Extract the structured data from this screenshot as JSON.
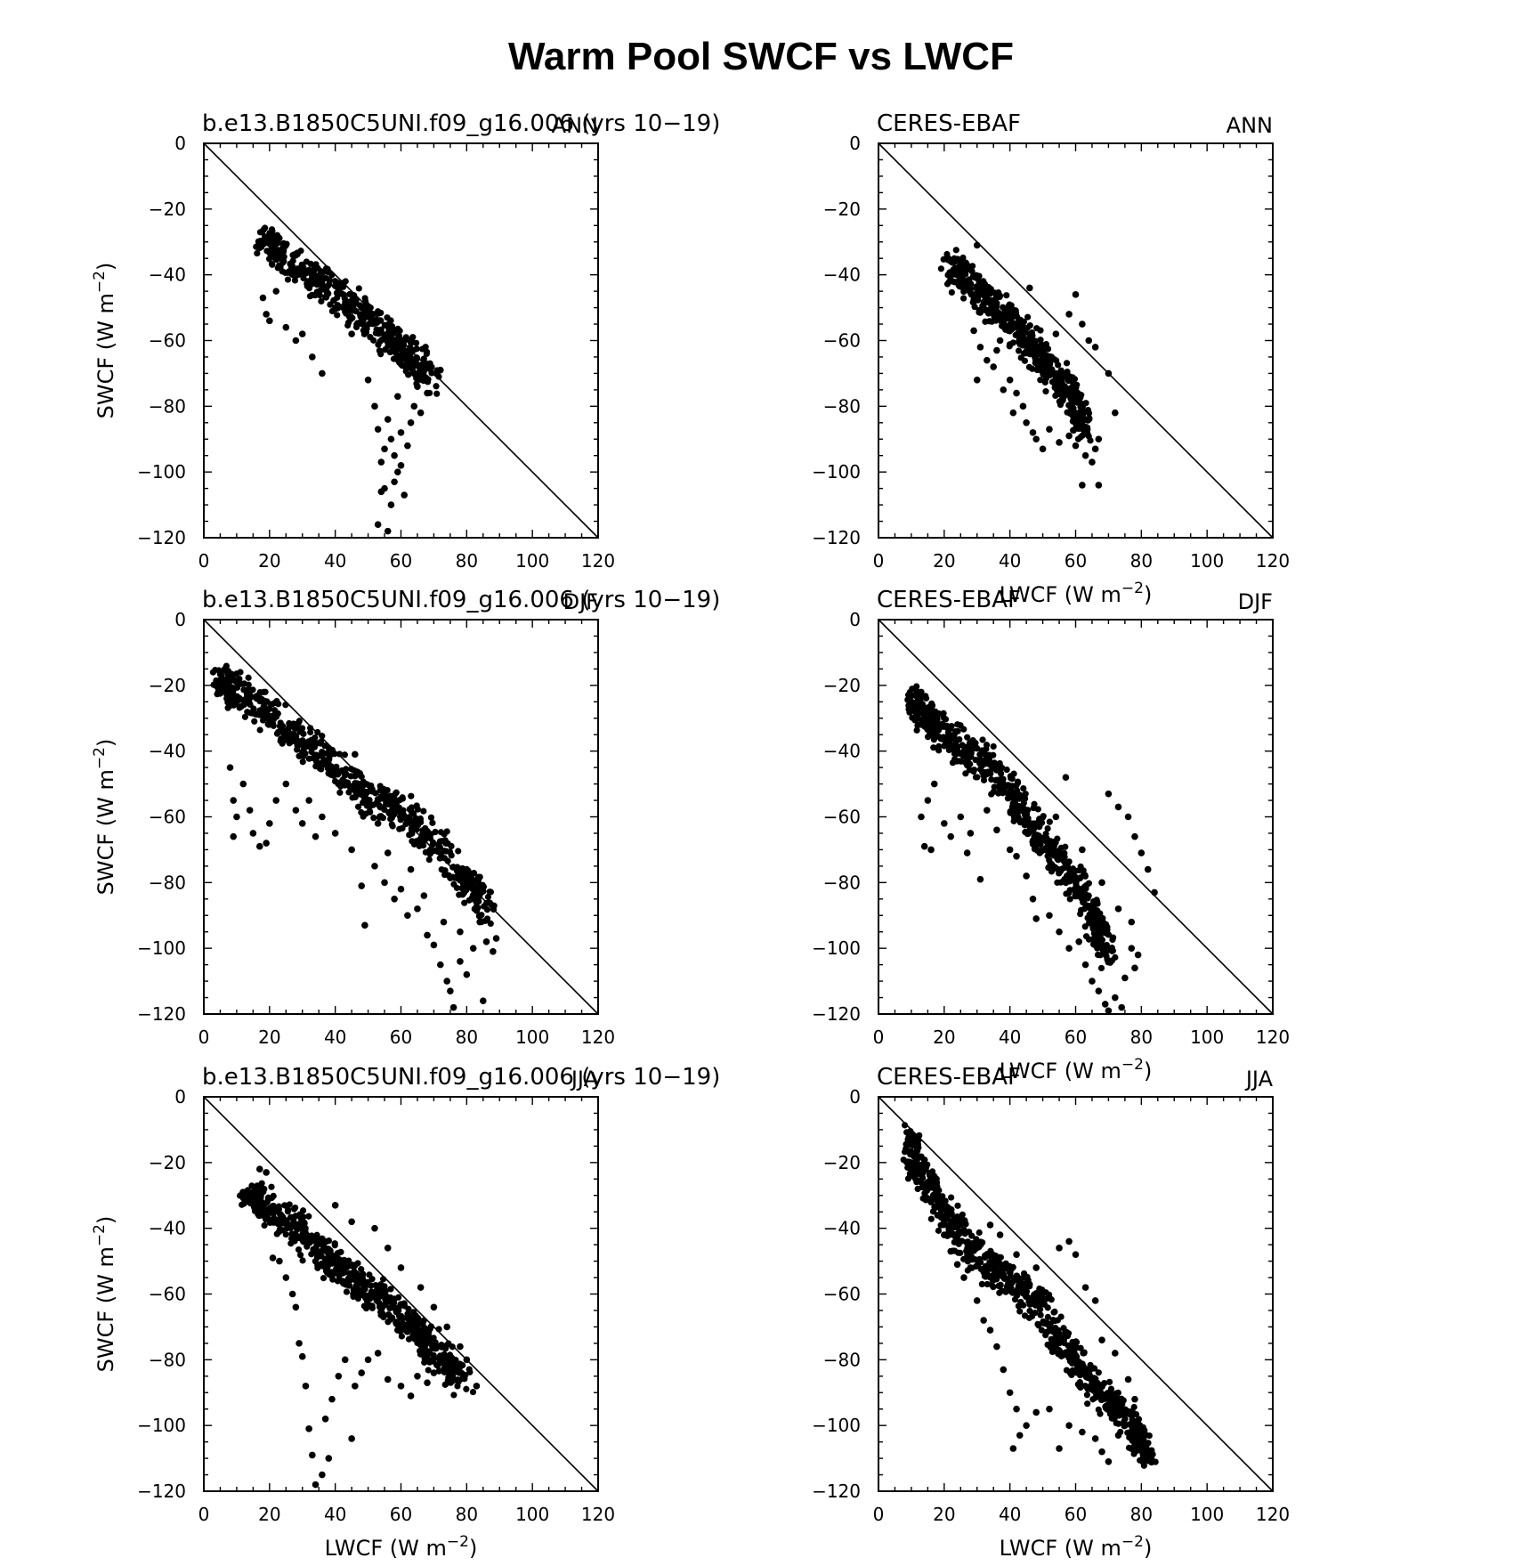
{
  "title": "Warm Pool SWCF vs LWCF",
  "chart_data": [
    {
      "type": "scatter",
      "left_title": "b.e13.B1850C5UNI.f09_g16.006 (yrs 10-19)",
      "right_title": "ANN",
      "xlabel": "",
      "ylabel": "SWCF (W m^-2)",
      "xlim": [
        0,
        120
      ],
      "ylim": [
        -120,
        0
      ],
      "xticks": [
        "0",
        "20",
        "40",
        "60",
        "80",
        "100",
        "120"
      ],
      "yticks": [
        "0",
        "-20",
        "-40",
        "-60",
        "-80",
        "-100",
        "-120"
      ],
      "reference_line": "y = -x",
      "cluster_core": [
        [
          17,
          -27
        ],
        [
          25,
          -33
        ],
        [
          35,
          -40
        ],
        [
          45,
          -48
        ],
        [
          55,
          -56
        ],
        [
          62,
          -62
        ],
        [
          70,
          -70
        ]
      ],
      "points": [
        [
          18,
          -47
        ],
        [
          19,
          -52
        ],
        [
          20,
          -54
        ],
        [
          22,
          -45
        ],
        [
          25,
          -56
        ],
        [
          28,
          -60
        ],
        [
          30,
          -58
        ],
        [
          33,
          -65
        ],
        [
          36,
          -70
        ],
        [
          40,
          -50
        ],
        [
          45,
          -58
        ],
        [
          50,
          -72
        ],
        [
          52,
          -80
        ],
        [
          53,
          -87
        ],
        [
          54,
          -97
        ],
        [
          55,
          -93
        ],
        [
          56,
          -84
        ],
        [
          57,
          -90
        ],
        [
          58,
          -95
        ],
        [
          59,
          -100
        ],
        [
          60,
          -98
        ],
        [
          55,
          -105
        ],
        [
          57,
          -110
        ],
        [
          53,
          -116
        ],
        [
          56,
          -118
        ],
        [
          54,
          -106
        ],
        [
          58,
          -103
        ],
        [
          61,
          -107
        ],
        [
          60,
          -88
        ],
        [
          62,
          -92
        ],
        [
          63,
          -85
        ],
        [
          64,
          -80
        ],
        [
          65,
          -74
        ],
        [
          66,
          -82
        ],
        [
          68,
          -76
        ],
        [
          72,
          -69
        ],
        [
          61,
          -60
        ],
        [
          63,
          -66
        ],
        [
          67,
          -71
        ],
        [
          59,
          -77
        ]
      ]
    },
    {
      "type": "scatter",
      "left_title": "CERES-EBAF",
      "right_title": "ANN",
      "xlabel": "LWCF (W m^-2)",
      "ylabel": "",
      "xlim": [
        0,
        120
      ],
      "ylim": [
        -120,
        0
      ],
      "xticks": [
        "0",
        "20",
        "40",
        "60",
        "80",
        "100",
        "120"
      ],
      "yticks": [
        "0",
        "-20",
        "-40",
        "-60",
        "-80",
        "-100",
        "-120"
      ],
      "reference_line": "y = -x",
      "cluster_core": [
        [
          21,
          -35
        ],
        [
          28,
          -40
        ],
        [
          35,
          -48
        ],
        [
          42,
          -55
        ],
        [
          48,
          -62
        ],
        [
          55,
          -70
        ],
        [
          60,
          -78
        ],
        [
          63,
          -85
        ]
      ],
      "points": [
        [
          30,
          -31
        ],
        [
          29,
          -57
        ],
        [
          31,
          -62
        ],
        [
          30,
          -72
        ],
        [
          33,
          -66
        ],
        [
          35,
          -68
        ],
        [
          37,
          -60
        ],
        [
          40,
          -72
        ],
        [
          42,
          -76
        ],
        [
          44,
          -80
        ],
        [
          45,
          -85
        ],
        [
          47,
          -88
        ],
        [
          48,
          -90
        ],
        [
          50,
          -93
        ],
        [
          52,
          -87
        ],
        [
          55,
          -91
        ],
        [
          58,
          -89
        ],
        [
          60,
          -92
        ],
        [
          63,
          -95
        ],
        [
          65,
          -97
        ],
        [
          66,
          -93
        ],
        [
          67,
          -90
        ],
        [
          62,
          -104
        ],
        [
          67,
          -104
        ],
        [
          60,
          -46
        ],
        [
          58,
          -52
        ],
        [
          62,
          -55
        ],
        [
          64,
          -60
        ],
        [
          66,
          -62
        ],
        [
          70,
          -70
        ],
        [
          72,
          -82
        ],
        [
          54,
          -58
        ],
        [
          46,
          -44
        ],
        [
          50,
          -66
        ],
        [
          56,
          -74
        ],
        [
          38,
          -75
        ],
        [
          41,
          -82
        ],
        [
          36,
          -63
        ]
      ]
    },
    {
      "type": "scatter",
      "left_title": "b.e13.B1850C5UNI.f09_g16.006 (yrs 10-19)",
      "right_title": "DJF",
      "xlabel": "",
      "ylabel": "SWCF (W m^-2)",
      "xlim": [
        0,
        120
      ],
      "ylim": [
        -120,
        0
      ],
      "xticks": [
        "0",
        "20",
        "40",
        "60",
        "80",
        "100",
        "120"
      ],
      "yticks": [
        "0",
        "-20",
        "-40",
        "-60",
        "-80",
        "-100",
        "-120"
      ],
      "reference_line": "y = -x",
      "cluster_core": [
        [
          5,
          -15
        ],
        [
          10,
          -20
        ],
        [
          20,
          -27
        ],
        [
          30,
          -35
        ],
        [
          40,
          -43
        ],
        [
          50,
          -52
        ],
        [
          60,
          -56
        ],
        [
          70,
          -66
        ],
        [
          80,
          -78
        ],
        [
          87,
          -86
        ]
      ],
      "points": [
        [
          8,
          -45
        ],
        [
          9,
          -55
        ],
        [
          10,
          -60
        ],
        [
          9,
          -66
        ],
        [
          12,
          -50
        ],
        [
          14,
          -58
        ],
        [
          15,
          -65
        ],
        [
          17,
          -69
        ],
        [
          19,
          -68
        ],
        [
          20,
          -62
        ],
        [
          22,
          -55
        ],
        [
          25,
          -50
        ],
        [
          28,
          -58
        ],
        [
          30,
          -62
        ],
        [
          32,
          -55
        ],
        [
          34,
          -66
        ],
        [
          36,
          -60
        ],
        [
          40,
          -65
        ],
        [
          45,
          -70
        ],
        [
          48,
          -81
        ],
        [
          49,
          -93
        ],
        [
          52,
          -75
        ],
        [
          55,
          -80
        ],
        [
          58,
          -85
        ],
        [
          60,
          -82
        ],
        [
          62,
          -90
        ],
        [
          65,
          -88
        ],
        [
          68,
          -96
        ],
        [
          70,
          -99
        ],
        [
          72,
          -105
        ],
        [
          74,
          -110
        ],
        [
          75,
          -113
        ],
        [
          76,
          -118
        ],
        [
          78,
          -104
        ],
        [
          80,
          -108
        ],
        [
          82,
          -100
        ],
        [
          85,
          -116
        ],
        [
          86,
          -98
        ],
        [
          88,
          -101
        ],
        [
          89,
          -97
        ],
        [
          46,
          -41
        ],
        [
          53,
          -62
        ],
        [
          56,
          -71
        ],
        [
          63,
          -76
        ],
        [
          67,
          -84
        ],
        [
          73,
          -92
        ],
        [
          78,
          -95
        ],
        [
          84,
          -92
        ]
      ]
    },
    {
      "type": "scatter",
      "left_title": "CERES-EBAF",
      "right_title": "DJF",
      "xlabel": "LWCF (W m^-2)",
      "ylabel": "",
      "xlim": [
        0,
        120
      ],
      "ylim": [
        -120,
        0
      ],
      "xticks": [
        "0",
        "20",
        "40",
        "60",
        "80",
        "100",
        "120"
      ],
      "yticks": [
        "0",
        "-20",
        "-40",
        "-60",
        "-80",
        "-100",
        "-120"
      ],
      "reference_line": "y = -x",
      "cluster_core": [
        [
          9,
          -22
        ],
        [
          15,
          -28
        ],
        [
          22,
          -35
        ],
        [
          30,
          -40
        ],
        [
          38,
          -48
        ],
        [
          45,
          -58
        ],
        [
          52,
          -68
        ],
        [
          60,
          -78
        ],
        [
          66,
          -90
        ],
        [
          70,
          -100
        ]
      ],
      "points": [
        [
          14,
          -69
        ],
        [
          16,
          -70
        ],
        [
          13,
          -60
        ],
        [
          15,
          -55
        ],
        [
          17,
          -50
        ],
        [
          20,
          -62
        ],
        [
          22,
          -66
        ],
        [
          25,
          -60
        ],
        [
          28,
          -65
        ],
        [
          31,
          -79
        ],
        [
          27,
          -71
        ],
        [
          33,
          -58
        ],
        [
          36,
          -64
        ],
        [
          40,
          -70
        ],
        [
          42,
          -72
        ],
        [
          45,
          -78
        ],
        [
          47,
          -85
        ],
        [
          48,
          -91
        ],
        [
          52,
          -90
        ],
        [
          55,
          -95
        ],
        [
          58,
          -100
        ],
        [
          61,
          -98
        ],
        [
          63,
          -105
        ],
        [
          65,
          -110
        ],
        [
          67,
          -113
        ],
        [
          69,
          -117
        ],
        [
          70,
          -119
        ],
        [
          72,
          -115
        ],
        [
          74,
          -118
        ],
        [
          75,
          -109
        ],
        [
          77,
          -100
        ],
        [
          78,
          -106
        ],
        [
          79,
          -102
        ],
        [
          70,
          -53
        ],
        [
          73,
          -57
        ],
        [
          76,
          -60
        ],
        [
          78,
          -66
        ],
        [
          80,
          -71
        ],
        [
          82,
          -76
        ],
        [
          84,
          -83
        ],
        [
          57,
          -48
        ],
        [
          54,
          -60
        ],
        [
          62,
          -70
        ],
        [
          68,
          -80
        ],
        [
          73,
          -88
        ],
        [
          77,
          -92
        ]
      ]
    },
    {
      "type": "scatter",
      "left_title": "b.e13.B1850C5UNI.f09_g16.006 (yrs 10-19)",
      "right_title": "JJA",
      "xlabel": "LWCF (W m^-2)",
      "ylabel": "SWCF (W m^-2)",
      "xlim": [
        0,
        120
      ],
      "ylim": [
        -120,
        0
      ],
      "xticks": [
        "0",
        "20",
        "40",
        "60",
        "80",
        "100",
        "120"
      ],
      "yticks": [
        "0",
        "-20",
        "-40",
        "-60",
        "-80",
        "-100",
        "-120"
      ],
      "reference_line": "y = -x",
      "cluster_core": [
        [
          13,
          -27
        ],
        [
          20,
          -32
        ],
        [
          28,
          -38
        ],
        [
          35,
          -45
        ],
        [
          42,
          -50
        ],
        [
          50,
          -57
        ],
        [
          58,
          -63
        ],
        [
          65,
          -70
        ],
        [
          72,
          -78
        ],
        [
          80,
          -85
        ]
      ],
      "points": [
        [
          17,
          -22
        ],
        [
          19,
          -23
        ],
        [
          20,
          -34
        ],
        [
          21,
          -49
        ],
        [
          23,
          -50
        ],
        [
          25,
          -55
        ],
        [
          27,
          -60
        ],
        [
          28,
          -64
        ],
        [
          29,
          -75
        ],
        [
          30,
          -79
        ],
        [
          31,
          -88
        ],
        [
          32,
          -101
        ],
        [
          33,
          -109
        ],
        [
          34,
          -118
        ],
        [
          36,
          -115
        ],
        [
          38,
          -110
        ],
        [
          37,
          -98
        ],
        [
          39,
          -92
        ],
        [
          41,
          -85
        ],
        [
          43,
          -80
        ],
        [
          45,
          -104
        ],
        [
          46,
          -88
        ],
        [
          48,
          -84
        ],
        [
          50,
          -80
        ],
        [
          53,
          -78
        ],
        [
          56,
          -86
        ],
        [
          60,
          -88
        ],
        [
          63,
          -91
        ],
        [
          65,
          -85
        ],
        [
          68,
          -87
        ],
        [
          70,
          -84
        ],
        [
          75,
          -86
        ],
        [
          80,
          -80
        ],
        [
          83,
          -88
        ],
        [
          45,
          -38
        ],
        [
          52,
          -40
        ],
        [
          56,
          -46
        ],
        [
          60,
          -52
        ],
        [
          66,
          -58
        ],
        [
          70,
          -64
        ],
        [
          74,
          -70
        ],
        [
          78,
          -76
        ],
        [
          40,
          -33
        ]
      ]
    },
    {
      "type": "scatter",
      "left_title": "CERES-EBAF",
      "right_title": "JJA",
      "xlabel": "LWCF (W m^-2)",
      "ylabel": "",
      "xlim": [
        0,
        120
      ],
      "ylim": [
        -120,
        0
      ],
      "xticks": [
        "0",
        "20",
        "40",
        "60",
        "80",
        "100",
        "120"
      ],
      "yticks": [
        "0",
        "-20",
        "-40",
        "-60",
        "-80",
        "-100",
        "-120"
      ],
      "reference_line": "y = -x",
      "cluster_core": [
        [
          9,
          -10
        ],
        [
          12,
          -20
        ],
        [
          18,
          -30
        ],
        [
          25,
          -40
        ],
        [
          33,
          -50
        ],
        [
          40,
          -53
        ],
        [
          48,
          -60
        ],
        [
          55,
          -72
        ],
        [
          62,
          -82
        ],
        [
          70,
          -90
        ],
        [
          78,
          -100
        ],
        [
          82,
          -106
        ]
      ],
      "points": [
        [
          9,
          -13
        ],
        [
          11,
          -18
        ],
        [
          13,
          -22
        ],
        [
          15,
          -26
        ],
        [
          16,
          -32
        ],
        [
          18,
          -36
        ],
        [
          20,
          -42
        ],
        [
          22,
          -47
        ],
        [
          24,
          -51
        ],
        [
          26,
          -55
        ],
        [
          28,
          -52
        ],
        [
          30,
          -62
        ],
        [
          32,
          -68
        ],
        [
          34,
          -71
        ],
        [
          36,
          -76
        ],
        [
          38,
          -83
        ],
        [
          40,
          -90
        ],
        [
          42,
          -95
        ],
        [
          41,
          -107
        ],
        [
          43,
          -103
        ],
        [
          45,
          -100
        ],
        [
          48,
          -96
        ],
        [
          52,
          -95
        ],
        [
          55,
          -107
        ],
        [
          58,
          -100
        ],
        [
          62,
          -102
        ],
        [
          66,
          -104
        ],
        [
          68,
          -108
        ],
        [
          70,
          -111
        ],
        [
          73,
          -103
        ],
        [
          75,
          -100
        ],
        [
          78,
          -104
        ],
        [
          80,
          -106
        ],
        [
          82,
          -108
        ],
        [
          83,
          -110
        ],
        [
          34,
          -39
        ],
        [
          37,
          -42
        ],
        [
          42,
          -48
        ],
        [
          48,
          -52
        ],
        [
          55,
          -46
        ],
        [
          58,
          -44
        ],
        [
          60,
          -48
        ],
        [
          63,
          -58
        ],
        [
          66,
          -62
        ],
        [
          68,
          -74
        ],
        [
          72,
          -78
        ],
        [
          76,
          -86
        ],
        [
          78,
          -92
        ]
      ]
    }
  ]
}
